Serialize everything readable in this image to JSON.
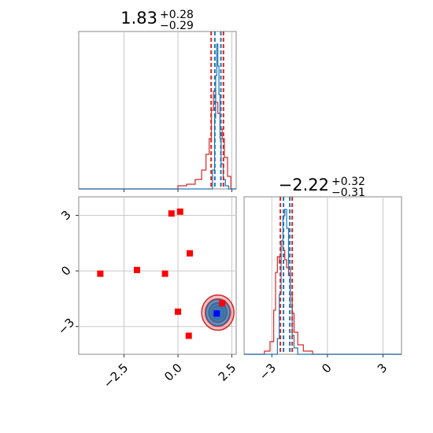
{
  "chart_data": [
    {
      "type": "histogram",
      "panel": "x-marginal",
      "title_main": "1.83",
      "title_plus": "+0.28",
      "title_minus": "−0.29",
      "xlim": [
        -4.6,
        2.7
      ],
      "xticks": [
        -2.5,
        0.0,
        2.5
      ],
      "grid": true,
      "series": [
        {
          "color": "#d62728",
          "bins": [
            [
              -0.0,
              0.02
            ],
            [
              0.4,
              0.03
            ],
            [
              0.8,
              0.06
            ],
            [
              1.1,
              0.12
            ],
            [
              1.3,
              0.22
            ],
            [
              1.45,
              0.32
            ],
            [
              1.55,
              0.5
            ],
            [
              1.65,
              0.62
            ],
            [
              1.75,
              0.55
            ],
            [
              1.85,
              0.48
            ],
            [
              1.95,
              0.38
            ],
            [
              2.05,
              0.32
            ],
            [
              2.15,
              0.2
            ],
            [
              2.3,
              0.08
            ],
            [
              2.45,
              0.0
            ]
          ],
          "quantile_lines": [
            1.54,
            2.11
          ]
        },
        {
          "color": "#1f77b4",
          "bins": [
            [
              1.45,
              0.0
            ],
            [
              1.6,
              0.12
            ],
            [
              1.7,
              0.45
            ],
            [
              1.75,
              0.72
            ],
            [
              1.8,
              0.92
            ],
            [
              1.85,
              0.78
            ],
            [
              1.9,
              0.6
            ],
            [
              1.95,
              0.32
            ],
            [
              2.0,
              0.16
            ],
            [
              2.1,
              0.06
            ],
            [
              2.2,
              0.02
            ],
            [
              2.35,
              0.0
            ]
          ],
          "quantile_lines": [
            1.71,
            1.99
          ]
        }
      ]
    },
    {
      "type": "scatter",
      "panel": "joint",
      "xlim": [
        -4.6,
        2.7
      ],
      "ylim": [
        -4.5,
        4.0
      ],
      "xticks": [
        -2.5,
        0.0,
        2.5
      ],
      "xtick_labels": [
        "−2.5",
        "0.0",
        "2.5"
      ],
      "yticks": [
        3,
        0,
        -3
      ],
      "ytick_labels": [
        "3",
        "0",
        "−3"
      ],
      "grid": true,
      "points": [
        {
          "x": -3.6,
          "y": -0.15,
          "color": "#ff0000"
        },
        {
          "x": -1.9,
          "y": 0.05,
          "color": "#ff0000"
        },
        {
          "x": -0.6,
          "y": -0.15,
          "color": "#ff0000"
        },
        {
          "x": -0.3,
          "y": 3.1,
          "color": "#ff0000"
        },
        {
          "x": 0.1,
          "y": 3.2,
          "color": "#ff0000"
        },
        {
          "x": 0.55,
          "y": 0.95,
          "color": "#ff0000"
        },
        {
          "x": 0.0,
          "y": -2.2,
          "color": "#ff0000"
        },
        {
          "x": 0.5,
          "y": -3.5,
          "color": "#ff0000"
        },
        {
          "x": 2.05,
          "y": -1.75,
          "color": "#ff0000"
        },
        {
          "x": 1.8,
          "y": -2.3,
          "color": "#0000ff"
        }
      ],
      "contours": [
        {
          "cx": 1.85,
          "cy": -2.25,
          "rx": 0.75,
          "ry": 0.95,
          "color": "#d62728"
        },
        {
          "cx": 1.85,
          "cy": -2.25,
          "rx": 0.55,
          "ry": 0.7,
          "color": "#1f77b4"
        }
      ]
    },
    {
      "type": "histogram",
      "panel": "y-marginal",
      "title_main": "−2.22",
      "title_plus": "+0.32",
      "title_minus": "−0.31",
      "xlim": [
        -4.5,
        4.0
      ],
      "xticks": [
        -3,
        0,
        3
      ],
      "xtick_labels": [
        "−3",
        "0",
        "3"
      ],
      "grid": true,
      "series": [
        {
          "color": "#d62728",
          "bins": [
            [
              -4.2,
              0.0
            ],
            [
              -3.4,
              0.02
            ],
            [
              -3.1,
              0.08
            ],
            [
              -2.9,
              0.28
            ],
            [
              -2.8,
              0.52
            ],
            [
              -2.7,
              0.62
            ],
            [
              -2.6,
              0.58
            ],
            [
              -2.5,
              0.72
            ],
            [
              -2.4,
              0.66
            ],
            [
              -2.3,
              0.6
            ],
            [
              -2.2,
              0.55
            ],
            [
              -2.1,
              0.5
            ],
            [
              -2.0,
              0.38
            ],
            [
              -1.9,
              0.26
            ],
            [
              -1.8,
              0.14
            ],
            [
              -1.6,
              0.06
            ],
            [
              -1.3,
              0.02
            ],
            [
              -0.8,
              0.0
            ]
          ],
          "quantile_lines": [
            -2.54,
            -1.9
          ]
        },
        {
          "color": "#1f77b4",
          "bins": [
            [
              -2.8,
              0.0
            ],
            [
              -2.7,
              0.1
            ],
            [
              -2.6,
              0.38
            ],
            [
              -2.5,
              0.72
            ],
            [
              -2.4,
              0.88
            ],
            [
              -2.3,
              0.92
            ],
            [
              -2.2,
              0.8
            ],
            [
              -2.1,
              0.55
            ],
            [
              -2.0,
              0.3
            ],
            [
              -1.9,
              0.12
            ],
            [
              -1.8,
              0.04
            ],
            [
              -1.6,
              0.0
            ]
          ],
          "quantile_lines": [
            -2.37,
            -2.03
          ]
        }
      ]
    }
  ]
}
